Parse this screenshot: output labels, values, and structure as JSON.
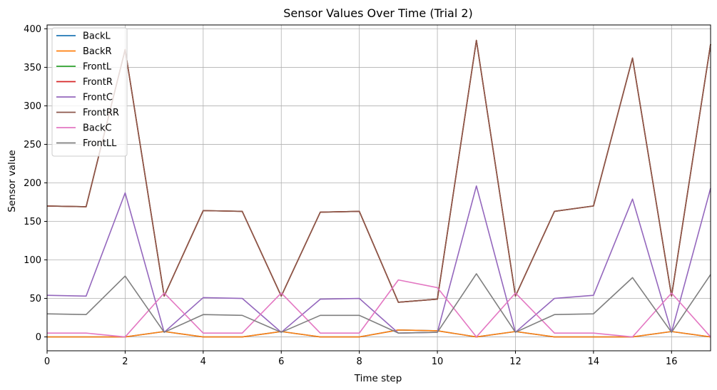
{
  "chart_data": {
    "type": "line",
    "title": "Sensor Values Over Time (Trial 2)",
    "xlabel": "Time step",
    "ylabel": "Sensor value",
    "xlim": [
      0,
      17
    ],
    "ylim": [
      -18,
      405
    ],
    "xticks": [
      0,
      2,
      4,
      6,
      8,
      10,
      12,
      14,
      16
    ],
    "yticks": [
      0,
      50,
      100,
      150,
      200,
      250,
      300,
      350,
      400
    ],
    "grid": true,
    "legend_position": "upper-left",
    "x": [
      0,
      1,
      2,
      3,
      4,
      5,
      6,
      7,
      8,
      9,
      10,
      11,
      12,
      13,
      14,
      15,
      16,
      17
    ],
    "series": [
      {
        "name": "BackL",
        "color": "#1f77b4",
        "values": [
          0,
          0,
          0,
          7,
          0,
          0,
          7,
          0,
          0,
          9,
          8,
          0,
          7,
          0,
          0,
          0,
          7,
          0
        ]
      },
      {
        "name": "BackR",
        "color": "#ff7f0e",
        "values": [
          0,
          0,
          0,
          7,
          0,
          0,
          7,
          0,
          0,
          9,
          8,
          0,
          7,
          0,
          0,
          0,
          7,
          0
        ]
      },
      {
        "name": "FrontL",
        "color": "#2ca02c",
        "values": [
          170,
          169,
          373,
          53,
          164,
          163,
          53,
          162,
          163,
          45,
          49,
          385,
          53,
          163,
          170,
          362,
          53,
          380
        ]
      },
      {
        "name": "FrontR",
        "color": "#d62728",
        "values": [
          170,
          169,
          373,
          53,
          164,
          163,
          53,
          162,
          163,
          45,
          49,
          385,
          53,
          163,
          170,
          362,
          53,
          380
        ]
      },
      {
        "name": "FrontC",
        "color": "#9467bd",
        "values": [
          54,
          53,
          187,
          6,
          51,
          50,
          6,
          49,
          50,
          5,
          6,
          196,
          6,
          50,
          54,
          179,
          6,
          193
        ]
      },
      {
        "name": "FrontRR",
        "color": "#8c564b",
        "values": [
          170,
          169,
          373,
          53,
          164,
          163,
          53,
          162,
          163,
          45,
          49,
          385,
          53,
          163,
          170,
          362,
          53,
          380
        ]
      },
      {
        "name": "BackC",
        "color": "#e377c2",
        "values": [
          5,
          5,
          0,
          57,
          5,
          5,
          57,
          5,
          5,
          74,
          64,
          0,
          57,
          5,
          5,
          0,
          57,
          0
        ]
      },
      {
        "name": "FrontLL",
        "color": "#7f7f7f",
        "values": [
          30,
          29,
          79,
          6,
          29,
          28,
          6,
          28,
          28,
          5,
          6,
          82,
          6,
          29,
          30,
          77,
          6,
          81
        ]
      }
    ]
  }
}
